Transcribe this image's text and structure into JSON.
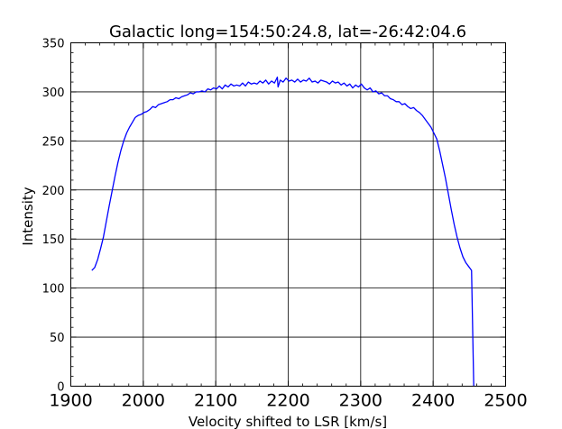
{
  "chart_data": {
    "type": "line",
    "title": "Galactic long=154:50:24.8, lat=-26:42:04.6",
    "xlabel": "Velocity shifted to LSR [km/s]",
    "ylabel": "Intensity",
    "xlim": [
      1900,
      2500
    ],
    "ylim": [
      0,
      350
    ],
    "xticks": [
      1900,
      2000,
      2100,
      2200,
      2300,
      2400,
      2500
    ],
    "xtick_labels": [
      "1900",
      "2000",
      "2100",
      "2200",
      "2300",
      "2400",
      "2500"
    ],
    "yticks": [
      0,
      50,
      100,
      150,
      200,
      250,
      300,
      350
    ],
    "ytick_labels": [
      "0",
      "50",
      "100",
      "150",
      "200",
      "250",
      "300",
      "350"
    ],
    "grid": true,
    "line_color": "#0000ff",
    "series": [
      {
        "x": [
          1929,
          1933,
          1937,
          1941,
          1945,
          1949,
          1953,
          1957,
          1961,
          1965,
          1969,
          1973,
          1977,
          1981,
          1985,
          1989,
          1993,
          1997,
          2001,
          2005,
          2009,
          2013,
          2017,
          2021,
          2025,
          2029,
          2033,
          2037,
          2041,
          2045,
          2049,
          2053,
          2057,
          2061,
          2065,
          2069,
          2073,
          2077,
          2081,
          2085,
          2089,
          2093,
          2097,
          2101,
          2105,
          2109,
          2113,
          2117,
          2121,
          2125,
          2129,
          2133,
          2137,
          2141,
          2145,
          2149,
          2153,
          2157,
          2161,
          2165,
          2169,
          2173,
          2177,
          2181,
          2185,
          2186,
          2189,
          2193,
          2197,
          2201,
          2205,
          2209,
          2213,
          2217,
          2221,
          2225,
          2229,
          2233,
          2237,
          2241,
          2245,
          2249,
          2253,
          2257,
          2261,
          2265,
          2269,
          2273,
          2277,
          2281,
          2285,
          2289,
          2293,
          2297,
          2301,
          2305,
          2309,
          2313,
          2317,
          2321,
          2325,
          2329,
          2333,
          2337,
          2341,
          2345,
          2349,
          2353,
          2357,
          2361,
          2365,
          2369,
          2373,
          2377,
          2381,
          2385,
          2389,
          2393,
          2397,
          2401,
          2405,
          2409,
          2413,
          2417,
          2421,
          2425,
          2429,
          2433,
          2437,
          2441,
          2445,
          2449,
          2451,
          2453,
          2456
        ],
        "y": [
          118,
          121,
          129,
          140,
          152,
          168,
          184,
          199,
          214,
          228,
          240,
          250,
          258,
          264,
          269,
          274,
          276,
          277,
          279,
          280,
          282,
          285,
          284,
          287,
          288,
          289,
          290,
          292,
          292,
          294,
          293,
          295,
          296,
          297,
          299,
          298,
          300,
          300,
          301,
          300,
          303,
          302,
          304,
          303,
          306,
          303,
          307,
          305,
          308,
          306,
          307,
          306,
          309,
          306,
          310,
          308,
          309,
          308,
          311,
          309,
          312,
          308,
          311,
          309,
          315,
          305,
          312,
          310,
          314,
          311,
          312,
          310,
          313,
          310,
          312,
          311,
          314,
          310,
          311,
          309,
          312,
          311,
          310,
          308,
          311,
          309,
          310,
          307,
          309,
          306,
          308,
          304,
          307,
          305,
          308,
          304,
          302,
          304,
          300,
          301,
          298,
          299,
          296,
          296,
          293,
          292,
          290,
          290,
          287,
          288,
          285,
          283,
          284,
          281,
          279,
          276,
          272,
          268,
          264,
          258,
          252,
          240,
          226,
          212,
          196,
          180,
          165,
          152,
          141,
          132,
          126,
          122,
          120,
          118,
          0
        ]
      }
    ]
  }
}
